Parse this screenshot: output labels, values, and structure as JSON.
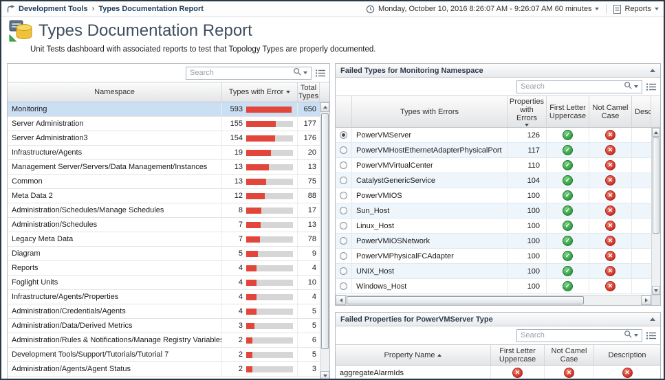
{
  "breadcrumb": {
    "items": [
      "Development Tools",
      "Types Documentation Report"
    ],
    "separator": "›"
  },
  "topbar": {
    "time_range": "Monday, October 10, 2016 8:26:07 AM - 9:26:07 AM 60 minutes",
    "reports_label": "Reports"
  },
  "header": {
    "title": "Types Documentation Report",
    "subtitle": "Unit Tests dashboard with associated reports to test that Topology Types are properly documented."
  },
  "status_glyphs": {
    "pass": "✓",
    "fail": "✕"
  },
  "colors": {
    "error_bar": "#e2463a",
    "pass": "#2f9e3f",
    "fail": "#d02f21",
    "selected_row": "#cbdff4"
  },
  "namespaces_panel": {
    "search_placeholder": "Search",
    "columns": {
      "namespace": "Namespace",
      "errors": "Types with Error",
      "total": "Total Types"
    },
    "sort": {
      "column": "Types with Error",
      "direction": "desc"
    },
    "rows": [
      {
        "namespace": "Monitoring",
        "errors": "593",
        "total": "650",
        "bar_pct": 97,
        "selected": true
      },
      {
        "namespace": "Server Administration",
        "errors": "155",
        "total": "177",
        "bar_pct": 63
      },
      {
        "namespace": "Server Administration3",
        "errors": "154",
        "total": "176",
        "bar_pct": 62
      },
      {
        "namespace": "Infrastructure/Agents",
        "errors": "19",
        "total": "20",
        "bar_pct": 53
      },
      {
        "namespace": "Management Server/Servers/Data Management/Instances",
        "errors": "13",
        "total": "13",
        "bar_pct": 48
      },
      {
        "namespace": "Common",
        "errors": "13",
        "total": "75",
        "bar_pct": 42
      },
      {
        "namespace": "Meta Data 2",
        "errors": "12",
        "total": "88",
        "bar_pct": 40
      },
      {
        "namespace": "Administration/Schedules/Manage Schedules",
        "errors": "8",
        "total": "17",
        "bar_pct": 33
      },
      {
        "namespace": "Administration/Schedules",
        "errors": "7",
        "total": "13",
        "bar_pct": 31
      },
      {
        "namespace": "Legacy Meta Data",
        "errors": "7",
        "total": "78",
        "bar_pct": 29
      },
      {
        "namespace": "Diagram",
        "errors": "5",
        "total": "9",
        "bar_pct": 25
      },
      {
        "namespace": "Reports",
        "errors": "4",
        "total": "4",
        "bar_pct": 22
      },
      {
        "namespace": "Foglight Units",
        "errors": "4",
        "total": "10",
        "bar_pct": 22
      },
      {
        "namespace": "Infrastructure/Agents/Properties",
        "errors": "4",
        "total": "4",
        "bar_pct": 22
      },
      {
        "namespace": "Administration/Credentials/Agents",
        "errors": "4",
        "total": "5",
        "bar_pct": 22
      },
      {
        "namespace": "Administration/Data/Derived Metrics",
        "errors": "3",
        "total": "5",
        "bar_pct": 18
      },
      {
        "namespace": "Administration/Rules & Notifications/Manage Registry Variables",
        "errors": "2",
        "total": "6",
        "bar_pct": 13
      },
      {
        "namespace": "Development Tools/Support/Tutorials/Tutorial 7",
        "errors": "2",
        "total": "5",
        "bar_pct": 13
      },
      {
        "namespace": "Administration/Agents/Agent Status",
        "errors": "2",
        "total": "3",
        "bar_pct": 13
      }
    ]
  },
  "failed_types_panel": {
    "title": "Failed Types for Monitoring Namespace",
    "search_placeholder": "Search",
    "columns": {
      "types": "Types with Errors",
      "props": "Properties with Errors",
      "first_letter": "First Letter Uppercase",
      "camel": "Not Camel Case",
      "description": "Description"
    },
    "sort": {
      "column": "Properties with Errors",
      "direction": "desc"
    },
    "rows": [
      {
        "type": "PowerVMServer",
        "props": "126",
        "first_letter": "pass",
        "camel": "fail",
        "selected": true
      },
      {
        "type": "PowerVMHostEthernetAdapterPhysicalPort",
        "props": "117",
        "first_letter": "pass",
        "camel": "fail"
      },
      {
        "type": "PowerVMVirtualCenter",
        "props": "110",
        "first_letter": "pass",
        "camel": "fail"
      },
      {
        "type": "CatalystGenericService",
        "props": "104",
        "first_letter": "pass",
        "camel": "fail"
      },
      {
        "type": "PowerVMIOS",
        "props": "100",
        "first_letter": "pass",
        "camel": "fail"
      },
      {
        "type": "Sun_Host",
        "props": "100",
        "first_letter": "pass",
        "camel": "fail"
      },
      {
        "type": "Linux_Host",
        "props": "100",
        "first_letter": "pass",
        "camel": "fail"
      },
      {
        "type": "PowerVMIOSNetwork",
        "props": "100",
        "first_letter": "pass",
        "camel": "fail"
      },
      {
        "type": "PowerVMPhysicalFCAdapter",
        "props": "100",
        "first_letter": "pass",
        "camel": "fail"
      },
      {
        "type": "UNIX_Host",
        "props": "100",
        "first_letter": "pass",
        "camel": "fail"
      },
      {
        "type": "Windows_Host",
        "props": "100",
        "first_letter": "pass",
        "camel": "fail"
      }
    ]
  },
  "failed_properties_panel": {
    "title": "Failed Properties for PowerVMServer Type",
    "search_placeholder": "Search",
    "columns": {
      "name": "Property Name",
      "first_letter": "First Letter Uppercase",
      "camel": "Not Camel Case",
      "description": "Description"
    },
    "sort": {
      "column": "Property Name",
      "direction": "asc"
    },
    "rows": [
      {
        "name": "aggregateAlarmIds",
        "first_letter": "fail",
        "camel": "fail",
        "description": "fail"
      }
    ]
  }
}
